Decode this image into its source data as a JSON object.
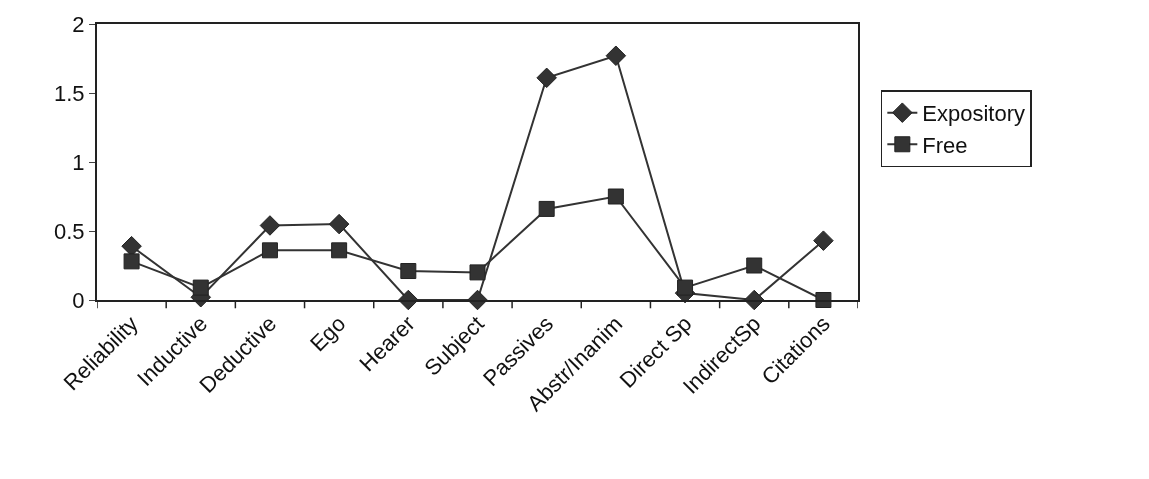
{
  "chart_data": {
    "type": "line",
    "categories": [
      "Reliability",
      "Inductive",
      "Deductive",
      "Ego",
      "Hearer",
      "Subject",
      "Passives",
      "Abstr/Inanim",
      "Direct Sp",
      "IndirectSp",
      "Citations"
    ],
    "series": [
      {
        "name": "Expository",
        "color": "#333333",
        "marker": "diamond",
        "values": [
          0.39,
          0.02,
          0.54,
          0.55,
          0,
          0,
          1.61,
          1.77,
          0.05,
          0,
          0.43
        ]
      },
      {
        "name": "Free",
        "color": "#333333",
        "marker": "square",
        "values": [
          0.28,
          0.09,
          0.36,
          0.36,
          0.21,
          0.2,
          0.66,
          0.75,
          0.09,
          0.25,
          0
        ]
      }
    ],
    "ylim": [
      0,
      2
    ],
    "yticks": [
      0,
      0.5,
      1,
      1.5,
      2
    ],
    "legend": "right",
    "line_style": "solid"
  }
}
